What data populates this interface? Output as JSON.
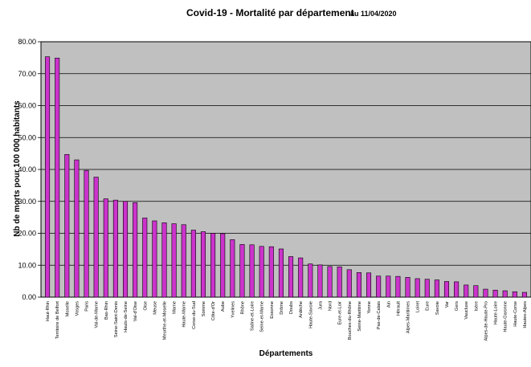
{
  "chart_data": {
    "type": "bar",
    "title": "Covid-19 - Mortalité par département",
    "subtitle": "au 11/04/2020",
    "xlabel": "Départements",
    "ylabel": "Nb de morts pour 100 000 habitants",
    "ylim": [
      0,
      80
    ],
    "yticks": [
      "0.00",
      "10.00",
      "20.00",
      "30.00",
      "40.00",
      "50.00",
      "60.00",
      "70.00",
      "80.00"
    ],
    "grid": true,
    "colors": {
      "plot_bg": "#c0c0c0",
      "bar_fill": "#cc33cc",
      "bar_stroke": "#000000",
      "grid": "#000000"
    },
    "categories": [
      "Haut-Rhin",
      "Territoire de Belfort",
      "Moselle",
      "Vosges",
      "Paris",
      "Val-de-Marne",
      "Bas-Rhin",
      "Seine-Saint-Denis",
      "Hauts-de-Seine",
      "Val-d'Oise",
      "Oise",
      "Meuse",
      "Meurthe-et-Moselle",
      "Marne",
      "Haute-Marne",
      "Corse-du-Sud",
      "Somme",
      "Côte-d'Or",
      "Aube",
      "Yvelines",
      "Rhône",
      "Saône-et-Loire",
      "Seine-et-Marne",
      "Essonne",
      "Drôme",
      "Doubs",
      "Ardèche",
      "Haute-Savoie",
      "Jura",
      "Nord",
      "Eure-et-Loir",
      "Bouches-du-Rhône",
      "Seine-Maritime",
      "Yonne",
      "Pas-de-Calais",
      "Ain",
      "Hérault",
      "Alpes-Maritimes",
      "Loiret",
      "Eure",
      "Savoie",
      "Var",
      "Gers",
      "Vaucluse",
      "Isère",
      "Alpes-de-Haute-Pro",
      "Haute-Loire",
      "Haute-Garonne",
      "Haute-Corse",
      "Hautes-Alpes"
    ],
    "values": [
      75.3,
      74.9,
      44.7,
      43.0,
      39.7,
      37.6,
      30.8,
      30.4,
      30.0,
      29.6,
      24.8,
      23.9,
      23.3,
      23.0,
      22.7,
      21.0,
      20.5,
      20.0,
      19.9,
      18.0,
      16.5,
      16.4,
      15.9,
      15.8,
      15.1,
      12.7,
      12.3,
      10.4,
      10.1,
      9.6,
      9.5,
      8.6,
      7.7,
      7.6,
      6.6,
      6.6,
      6.5,
      6.2,
      5.8,
      5.6,
      5.4,
      4.9,
      4.8,
      3.8,
      3.6,
      2.5,
      2.2,
      2.0,
      1.7,
      1.5
    ]
  }
}
